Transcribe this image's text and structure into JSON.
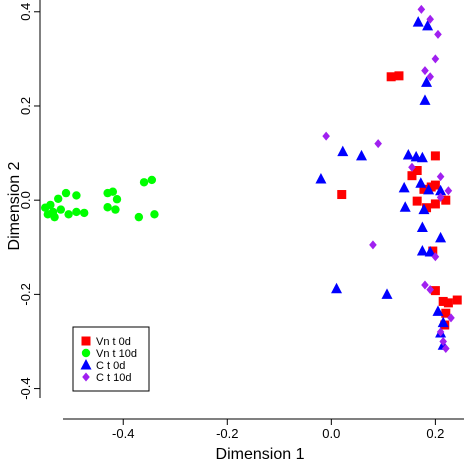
{
  "chart_data": {
    "type": "scatter",
    "title": "",
    "xlabel": "Dimension 1",
    "ylabel": "Dimension 2",
    "xlim": [
      -0.56,
      0.255
    ],
    "ylim": [
      -0.42,
      0.425
    ],
    "x_ticks": [
      -0.4,
      -0.2,
      0.0,
      0.2
    ],
    "x_tick_labels": [
      "-0.4",
      "-0.2",
      "0.0",
      "0.2"
    ],
    "y_ticks": [
      -0.4,
      -0.2,
      0.0,
      0.2,
      0.4
    ],
    "y_tick_labels": [
      "-0.4",
      "-0.2",
      "0.0",
      "0.2",
      "0.4"
    ],
    "grid": false,
    "legend_position": "bottom-left",
    "series": [
      {
        "name": "Vn t 0d",
        "color": "#ff0000",
        "marker": "square",
        "points": [
          [
            0.13,
            0.264
          ],
          [
            0.115,
            0.262
          ],
          [
            0.2,
            0.094
          ],
          [
            0.165,
            0.063
          ],
          [
            0.155,
            0.052
          ],
          [
            0.2,
            0.032
          ],
          [
            0.192,
            0.028
          ],
          [
            0.178,
            0.023
          ],
          [
            0.02,
            0.012
          ],
          [
            0.22,
            0.0
          ],
          [
            0.165,
            -0.002
          ],
          [
            0.2,
            -0.008
          ],
          [
            0.183,
            -0.016
          ],
          [
            0.195,
            -0.108
          ],
          [
            0.2,
            -0.192
          ],
          [
            0.215,
            -0.215
          ],
          [
            0.242,
            -0.212
          ],
          [
            0.225,
            -0.218
          ],
          [
            0.22,
            -0.24
          ],
          [
            0.218,
            -0.265
          ]
        ]
      },
      {
        "name": "Vn t 10d",
        "color": "#00ff00",
        "marker": "circle",
        "points": [
          [
            -0.345,
            0.043
          ],
          [
            -0.36,
            0.038
          ],
          [
            -0.42,
            0.018
          ],
          [
            -0.43,
            0.015
          ],
          [
            -0.412,
            0.002
          ],
          [
            -0.51,
            0.015
          ],
          [
            -0.49,
            0.01
          ],
          [
            -0.525,
            0.003
          ],
          [
            -0.54,
            -0.01
          ],
          [
            -0.55,
            -0.016
          ],
          [
            -0.52,
            -0.02
          ],
          [
            -0.49,
            -0.025
          ],
          [
            -0.43,
            -0.015
          ],
          [
            -0.415,
            -0.02
          ],
          [
            -0.535,
            -0.025
          ],
          [
            -0.505,
            -0.03
          ],
          [
            -0.475,
            -0.027
          ],
          [
            -0.532,
            -0.036
          ],
          [
            -0.545,
            -0.03
          ],
          [
            -0.37,
            -0.036
          ],
          [
            -0.34,
            -0.03
          ]
        ]
      },
      {
        "name": "C t 0d",
        "color": "#0000ff",
        "marker": "triangle",
        "points": [
          [
            0.167,
            0.378
          ],
          [
            0.185,
            0.37
          ],
          [
            0.183,
            0.25
          ],
          [
            0.18,
            0.212
          ],
          [
            0.148,
            0.096
          ],
          [
            0.022,
            0.103
          ],
          [
            0.163,
            0.092
          ],
          [
            0.175,
            0.09
          ],
          [
            0.058,
            0.094
          ],
          [
            0.172,
            0.036
          ],
          [
            -0.02,
            0.045
          ],
          [
            0.21,
            0.02
          ],
          [
            0.14,
            0.026
          ],
          [
            0.187,
            0.022
          ],
          [
            0.142,
            -0.015
          ],
          [
            0.178,
            -0.02
          ],
          [
            0.175,
            -0.058
          ],
          [
            0.21,
            -0.08
          ],
          [
            0.175,
            -0.108
          ],
          [
            0.19,
            -0.11
          ],
          [
            0.01,
            -0.188
          ],
          [
            0.107,
            -0.2
          ],
          [
            0.205,
            -0.236
          ],
          [
            0.215,
            -0.26
          ],
          [
            0.21,
            -0.282
          ],
          [
            0.215,
            -0.308
          ]
        ]
      },
      {
        "name": "C t 10d",
        "color": "#a020f0",
        "marker": "diamond",
        "points": [
          [
            0.173,
            0.405
          ],
          [
            0.19,
            0.384
          ],
          [
            0.205,
            0.352
          ],
          [
            0.2,
            0.3
          ],
          [
            0.18,
            0.275
          ],
          [
            0.19,
            0.262
          ],
          [
            -0.01,
            0.136
          ],
          [
            0.09,
            0.12
          ],
          [
            0.155,
            0.07
          ],
          [
            0.21,
            0.05
          ],
          [
            0.225,
            0.02
          ],
          [
            0.21,
            0.006
          ],
          [
            0.08,
            -0.095
          ],
          [
            0.2,
            -0.12
          ],
          [
            0.18,
            -0.18
          ],
          [
            0.19,
            -0.19
          ],
          [
            0.21,
            -0.28
          ],
          [
            0.23,
            -0.25
          ],
          [
            0.215,
            -0.3
          ],
          [
            0.22,
            -0.315
          ]
        ]
      }
    ]
  }
}
